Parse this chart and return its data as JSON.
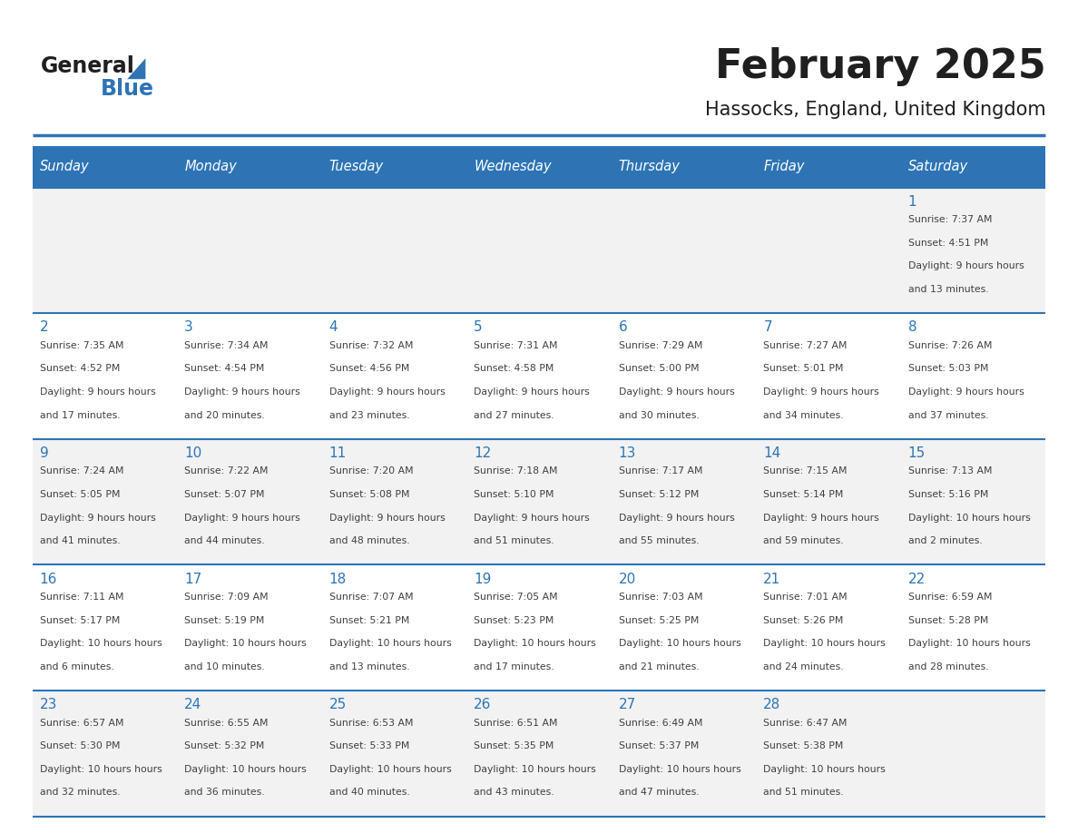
{
  "title": "February 2025",
  "subtitle": "Hassocks, England, United Kingdom",
  "header_bg": "#2e74b5",
  "header_text_color": "#ffffff",
  "cell_bg_light": "#f2f2f2",
  "cell_bg_white": "#ffffff",
  "day_names": [
    "Sunday",
    "Monday",
    "Tuesday",
    "Wednesday",
    "Thursday",
    "Friday",
    "Saturday"
  ],
  "grid_line_color": "#2e74b5",
  "day_num_color": "#2e74b5",
  "info_text_color": "#404040",
  "calendar": [
    [
      null,
      null,
      null,
      null,
      null,
      null,
      1
    ],
    [
      2,
      3,
      4,
      5,
      6,
      7,
      8
    ],
    [
      9,
      10,
      11,
      12,
      13,
      14,
      15
    ],
    [
      16,
      17,
      18,
      19,
      20,
      21,
      22
    ],
    [
      23,
      24,
      25,
      26,
      27,
      28,
      null
    ]
  ],
  "day_data": {
    "1": {
      "sunrise": "7:37 AM",
      "sunset": "4:51 PM",
      "daylight": "9 hours and 13 minutes."
    },
    "2": {
      "sunrise": "7:35 AM",
      "sunset": "4:52 PM",
      "daylight": "9 hours and 17 minutes."
    },
    "3": {
      "sunrise": "7:34 AM",
      "sunset": "4:54 PM",
      "daylight": "9 hours and 20 minutes."
    },
    "4": {
      "sunrise": "7:32 AM",
      "sunset": "4:56 PM",
      "daylight": "9 hours and 23 minutes."
    },
    "5": {
      "sunrise": "7:31 AM",
      "sunset": "4:58 PM",
      "daylight": "9 hours and 27 minutes."
    },
    "6": {
      "sunrise": "7:29 AM",
      "sunset": "5:00 PM",
      "daylight": "9 hours and 30 minutes."
    },
    "7": {
      "sunrise": "7:27 AM",
      "sunset": "5:01 PM",
      "daylight": "9 hours and 34 minutes."
    },
    "8": {
      "sunrise": "7:26 AM",
      "sunset": "5:03 PM",
      "daylight": "9 hours and 37 minutes."
    },
    "9": {
      "sunrise": "7:24 AM",
      "sunset": "5:05 PM",
      "daylight": "9 hours and 41 minutes."
    },
    "10": {
      "sunrise": "7:22 AM",
      "sunset": "5:07 PM",
      "daylight": "9 hours and 44 minutes."
    },
    "11": {
      "sunrise": "7:20 AM",
      "sunset": "5:08 PM",
      "daylight": "9 hours and 48 minutes."
    },
    "12": {
      "sunrise": "7:18 AM",
      "sunset": "5:10 PM",
      "daylight": "9 hours and 51 minutes."
    },
    "13": {
      "sunrise": "7:17 AM",
      "sunset": "5:12 PM",
      "daylight": "9 hours and 55 minutes."
    },
    "14": {
      "sunrise": "7:15 AM",
      "sunset": "5:14 PM",
      "daylight": "9 hours and 59 minutes."
    },
    "15": {
      "sunrise": "7:13 AM",
      "sunset": "5:16 PM",
      "daylight": "10 hours and 2 minutes."
    },
    "16": {
      "sunrise": "7:11 AM",
      "sunset": "5:17 PM",
      "daylight": "10 hours and 6 minutes."
    },
    "17": {
      "sunrise": "7:09 AM",
      "sunset": "5:19 PM",
      "daylight": "10 hours and 10 minutes."
    },
    "18": {
      "sunrise": "7:07 AM",
      "sunset": "5:21 PM",
      "daylight": "10 hours and 13 minutes."
    },
    "19": {
      "sunrise": "7:05 AM",
      "sunset": "5:23 PM",
      "daylight": "10 hours and 17 minutes."
    },
    "20": {
      "sunrise": "7:03 AM",
      "sunset": "5:25 PM",
      "daylight": "10 hours and 21 minutes."
    },
    "21": {
      "sunrise": "7:01 AM",
      "sunset": "5:26 PM",
      "daylight": "10 hours and 24 minutes."
    },
    "22": {
      "sunrise": "6:59 AM",
      "sunset": "5:28 PM",
      "daylight": "10 hours and 28 minutes."
    },
    "23": {
      "sunrise": "6:57 AM",
      "sunset": "5:30 PM",
      "daylight": "10 hours and 32 minutes."
    },
    "24": {
      "sunrise": "6:55 AM",
      "sunset": "5:32 PM",
      "daylight": "10 hours and 36 minutes."
    },
    "25": {
      "sunrise": "6:53 AM",
      "sunset": "5:33 PM",
      "daylight": "10 hours and 40 minutes."
    },
    "26": {
      "sunrise": "6:51 AM",
      "sunset": "5:35 PM",
      "daylight": "10 hours and 43 minutes."
    },
    "27": {
      "sunrise": "6:49 AM",
      "sunset": "5:37 PM",
      "daylight": "10 hours and 47 minutes."
    },
    "28": {
      "sunrise": "6:47 AM",
      "sunset": "5:38 PM",
      "daylight": "10 hours and 51 minutes."
    }
  }
}
